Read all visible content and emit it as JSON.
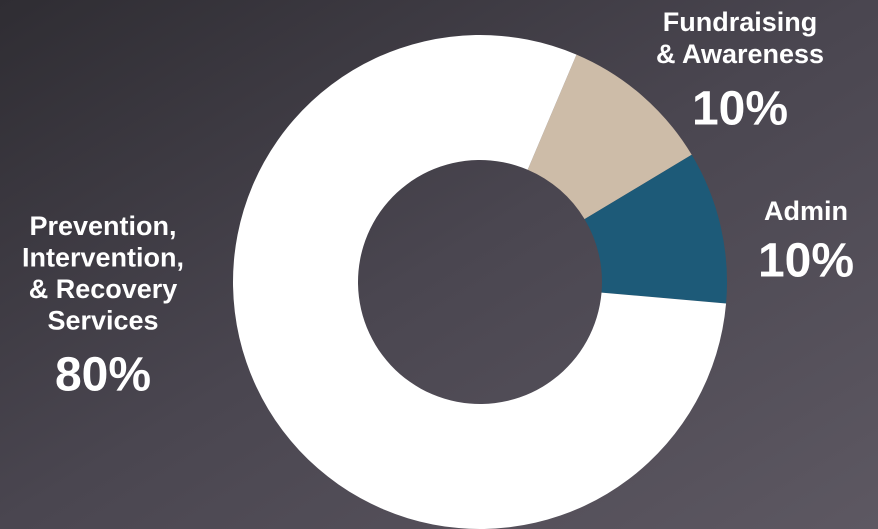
{
  "chart_data": {
    "type": "donut",
    "slices": [
      {
        "label_lines": [
          "Fundraising",
          "& Awareness"
        ],
        "value": 10,
        "value_label": "10%",
        "color": "#cdbca8"
      },
      {
        "label_lines": [
          "Admin"
        ],
        "value": 10,
        "value_label": "10%",
        "color": "#1d5a78"
      },
      {
        "label_lines": [
          "Prevention,",
          "Intervention,",
          "& Recovery",
          "Services"
        ],
        "value": 80,
        "value_label": "80%",
        "color": "#ffffff"
      }
    ]
  }
}
